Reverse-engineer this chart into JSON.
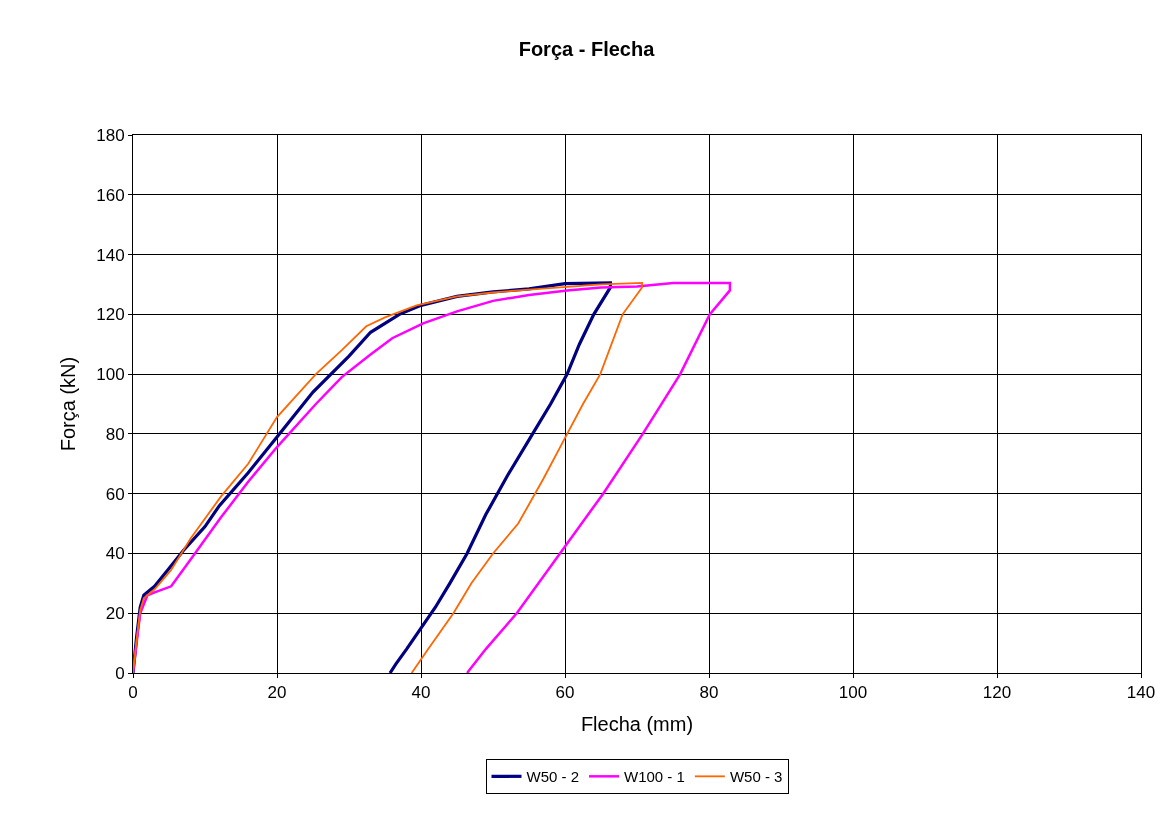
{
  "chart_data": {
    "type": "line",
    "title": "Força - Flecha",
    "xlabel": "Flecha (mm)",
    "ylabel": "Força (kN)",
    "xlim": [
      0,
      140
    ],
    "ylim": [
      0,
      180
    ],
    "xticks": [
      0,
      20,
      40,
      60,
      80,
      100,
      120,
      140
    ],
    "yticks": [
      0,
      20,
      40,
      60,
      80,
      100,
      120,
      140,
      160,
      180
    ],
    "grid": true,
    "legend": "bottom",
    "marker": "none",
    "line_style": "solid",
    "series": [
      {
        "name": "W50 - 2",
        "color": "#000080",
        "x": [
          0,
          0.5,
          1,
          1.5,
          3,
          5,
          7,
          10,
          12,
          16,
          20,
          25,
          30,
          33,
          37,
          40,
          45,
          50,
          55,
          60,
          66.3,
          66.3,
          64,
          62,
          60.3,
          58,
          55,
          52,
          49,
          46.4,
          44,
          42,
          40,
          38,
          36.5,
          35.7
        ],
        "values": [
          0,
          12,
          22,
          26,
          29,
          35,
          41,
          49,
          56,
          67,
          79,
          94,
          106,
          114,
          120,
          123,
          126,
          127.5,
          128.5,
          130.3,
          130.5,
          129,
          120,
          110,
          100,
          90,
          78,
          66,
          53,
          40,
          30,
          22,
          15,
          8,
          3,
          0
        ]
      },
      {
        "name": "W100 - 1",
        "color": "#ff00ff",
        "x": [
          0,
          0.5,
          1,
          2,
          3,
          5.3,
          8,
          12.2,
          16,
          20,
          25.4,
          29,
          32.9,
          36,
          40.3,
          45,
          50,
          55,
          60.3,
          65,
          70,
          75,
          82.9,
          82.9,
          80.1,
          76,
          70.8,
          65.3,
          59.3,
          53.3,
          49,
          46.4
        ],
        "values": [
          0,
          10,
          20,
          26,
          27,
          29,
          38,
          52,
          64,
          75.6,
          90,
          99,
          106.4,
          112,
          117,
          121,
          124.5,
          126.5,
          128,
          129,
          129.3,
          130.5,
          130.5,
          128,
          120,
          100,
          80,
          60,
          40,
          20,
          8,
          0
        ]
      },
      {
        "name": "W50 - 3",
        "color": "#ff6600",
        "x": [
          0,
          0.5,
          1,
          1.5,
          3,
          5.3,
          8,
          12.2,
          16,
          20,
          25.4,
          29,
          32.4,
          35,
          39.4,
          45,
          50,
          55,
          60.3,
          65,
          70.7,
          70.7,
          68,
          64.9,
          62.5,
          60.3,
          57,
          53.5,
          50,
          47,
          44.5,
          41,
          38.7
        ],
        "values": [
          0,
          11,
          21,
          25,
          28,
          34.5,
          45,
          59,
          70,
          85.6,
          100,
          108,
          116,
          119,
          123,
          126,
          127.3,
          128.3,
          129.2,
          130,
          130.5,
          129,
          120,
          100,
          90,
          80,
          65,
          50,
          40,
          30,
          20,
          8,
          0
        ]
      }
    ]
  }
}
